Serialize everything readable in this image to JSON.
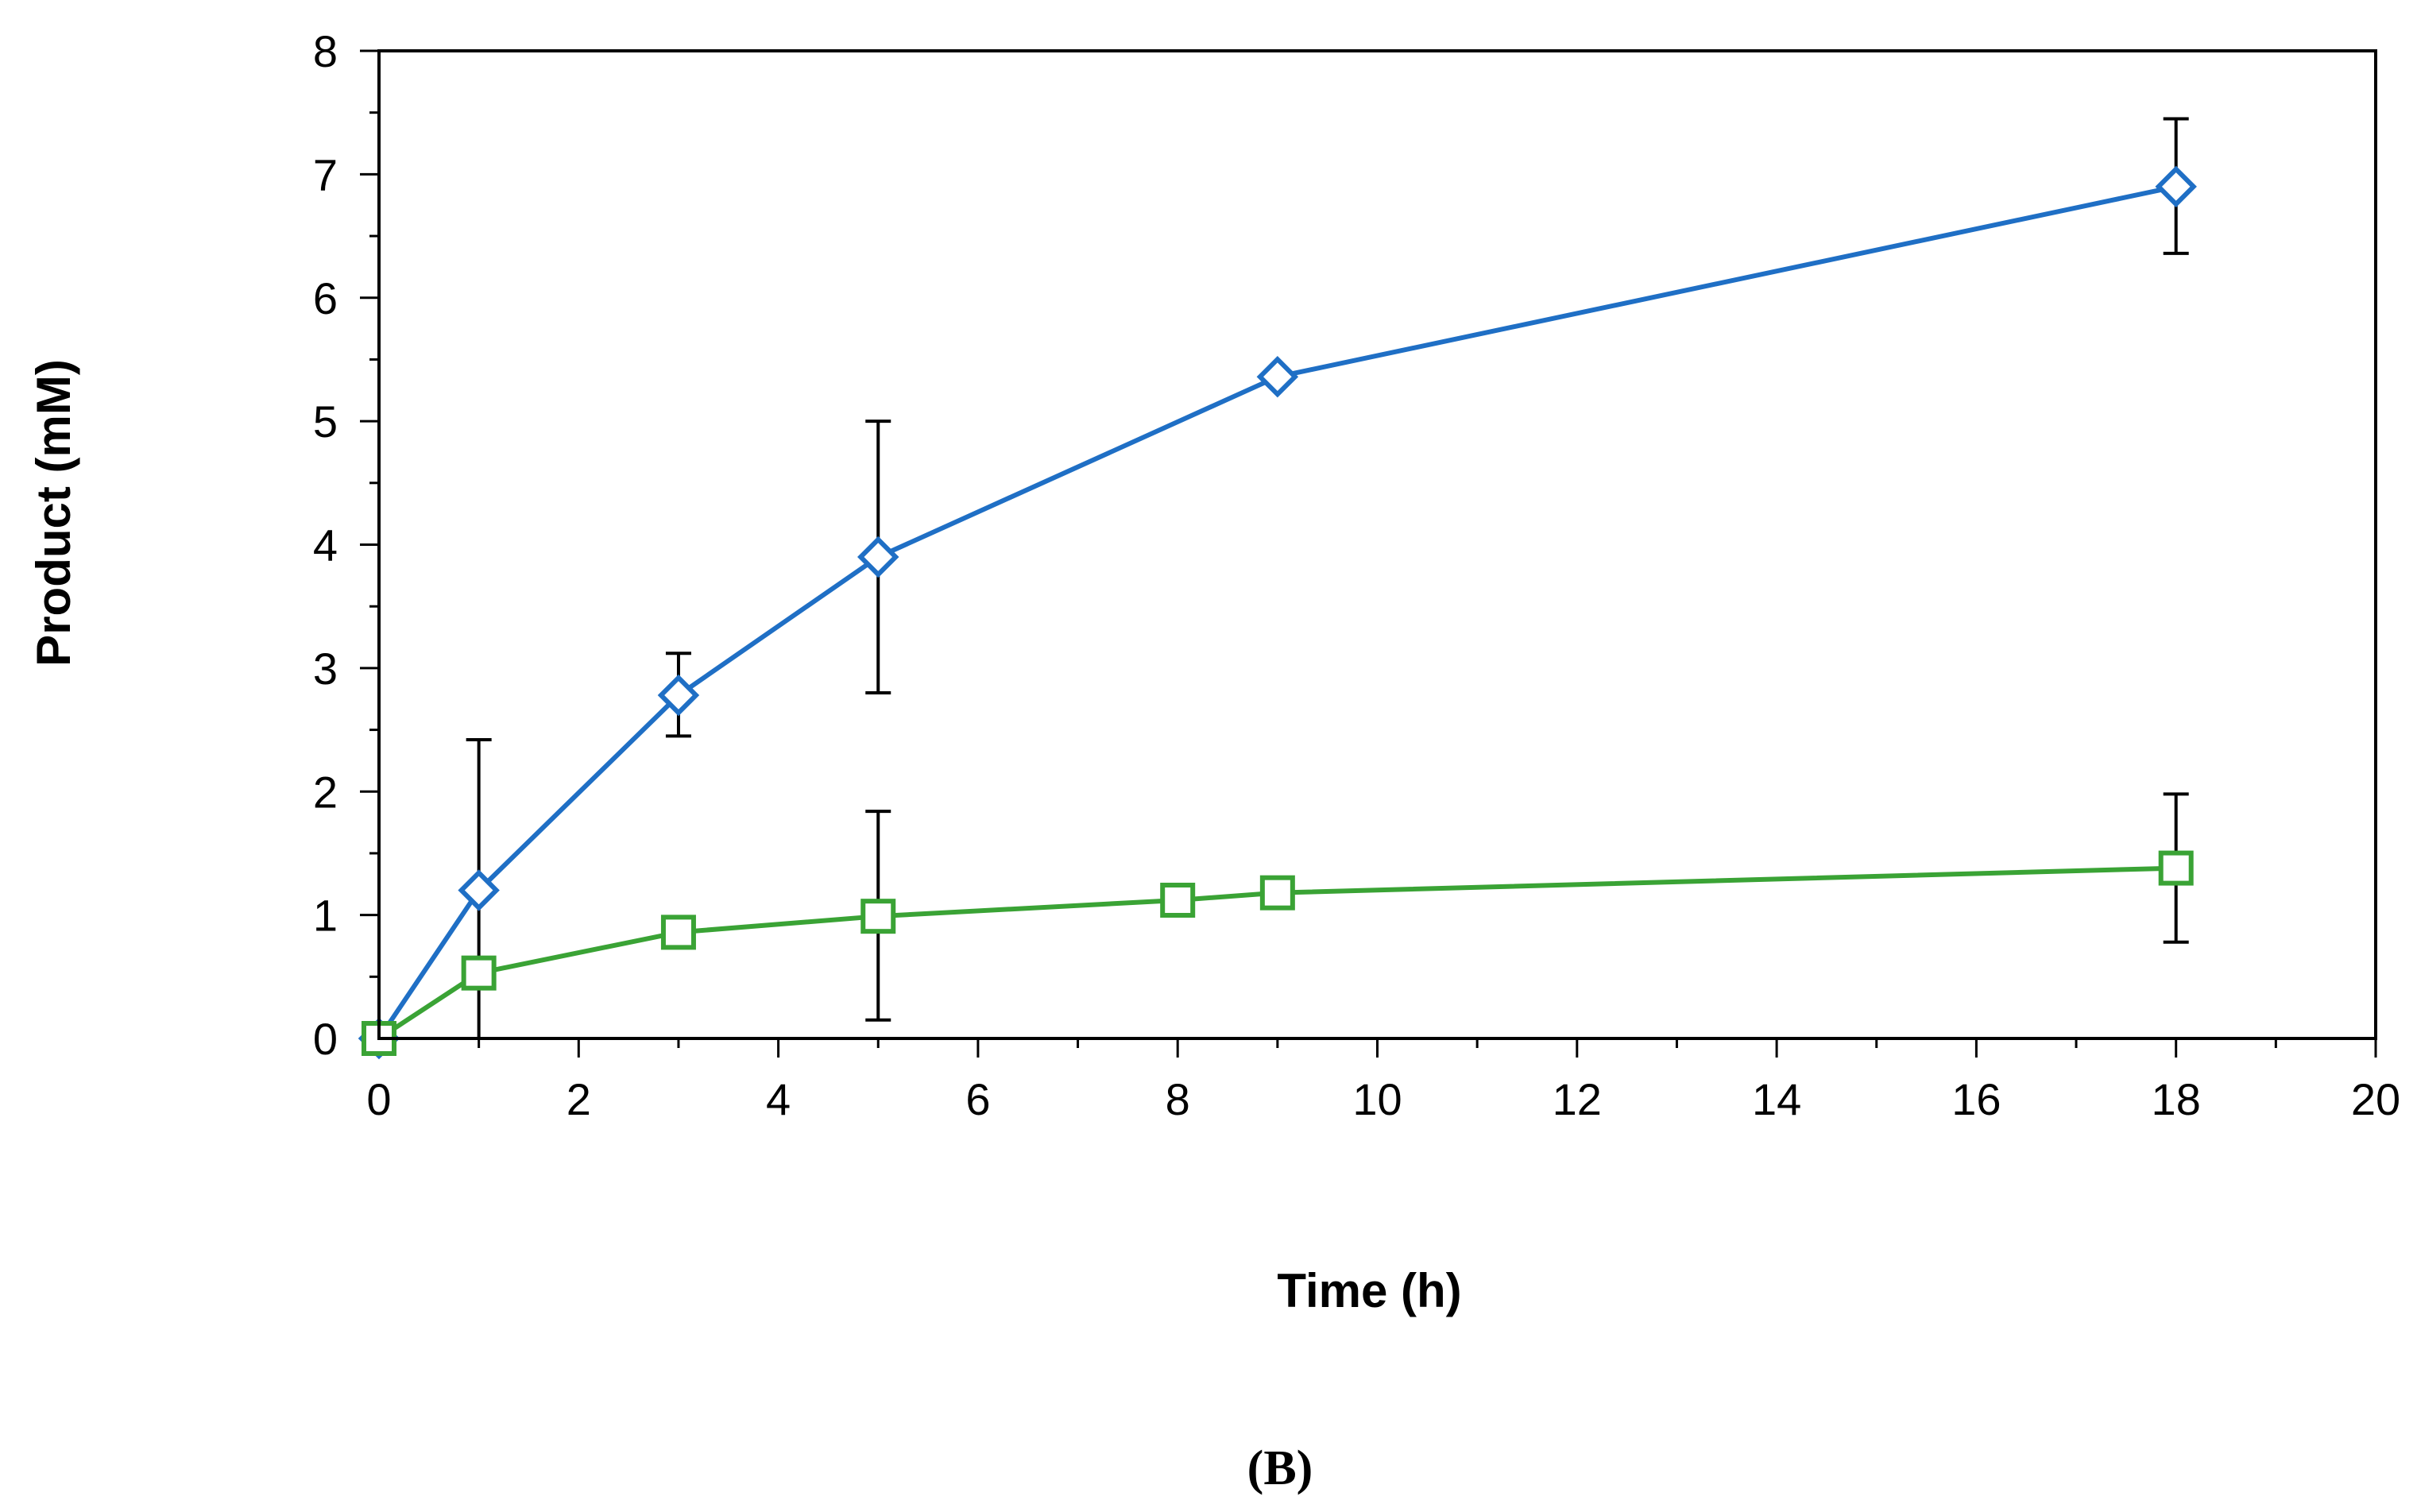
{
  "chart_data": {
    "type": "line",
    "xlabel": "Time (h)",
    "ylabel": "Product (mM)",
    "panel_label": "(B)",
    "xlim": [
      0,
      20
    ],
    "ylim": [
      0,
      8
    ],
    "x_ticks": [
      0,
      2,
      4,
      6,
      8,
      10,
      12,
      14,
      16,
      18,
      20
    ],
    "y_ticks": [
      0,
      1,
      2,
      3,
      4,
      5,
      6,
      7,
      8
    ],
    "x_minor_step": 1,
    "y_minor_step": 0.5,
    "grid": false,
    "legend": null,
    "series": [
      {
        "name": "series-blue-diamond",
        "color": "#1f6fc5",
        "marker": "diamond",
        "x": [
          0,
          1,
          3,
          5,
          9,
          18
        ],
        "y": [
          0,
          1.2,
          2.78,
          3.9,
          5.36,
          6.9
        ],
        "error": [
          null,
          {
            "low": 0,
            "high": 2.42
          },
          {
            "low": 2.45,
            "high": 3.12
          },
          {
            "low": 2.8,
            "high": 5.0
          },
          null,
          {
            "low": 6.36,
            "high": 7.45
          }
        ]
      },
      {
        "name": "series-green-square",
        "color": "#3aa335",
        "marker": "square",
        "x": [
          0,
          1,
          3,
          5,
          8,
          9,
          18
        ],
        "y": [
          0,
          0.53,
          0.86,
          0.99,
          1.12,
          1.18,
          1.38
        ],
        "error": [
          null,
          null,
          null,
          {
            "low": 0.15,
            "high": 1.84
          },
          null,
          null,
          {
            "low": 0.78,
            "high": 1.98
          }
        ]
      }
    ]
  }
}
